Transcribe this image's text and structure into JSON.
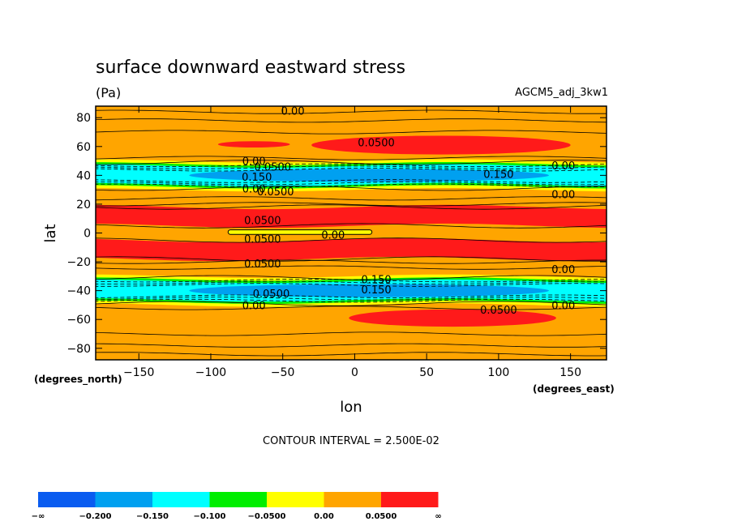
{
  "chart_data": {
    "type": "heatmap",
    "title": "surface downward eastward stress",
    "units": "(Pa)",
    "dataset": "AGCM5_adj_3kw1",
    "xlabel": "lon",
    "ylabel": "lat",
    "xunits": "(degrees_east)",
    "yunits": "(degrees_north)",
    "xlim": [
      -180,
      175
    ],
    "ylim": [
      -88,
      88
    ],
    "xticks": [
      -150,
      -100,
      -50,
      0,
      50,
      100,
      150
    ],
    "yticks": [
      80,
      60,
      40,
      20,
      0,
      -20,
      -40,
      -60,
      -80
    ],
    "xtick_labels": [
      "−150",
      "−100",
      "−50",
      "0",
      "50",
      "100",
      "150"
    ],
    "ytick_labels": [
      "80",
      "60",
      "40",
      "20",
      "0",
      "−20",
      "−40",
      "−60",
      "−80"
    ],
    "contour_interval_text": "CONTOUR INTERVAL = 2.500E-02",
    "colorbar": {
      "bounds": [
        "−∞",
        "−0.200",
        "−0.150",
        "−0.100",
        "−0.0500",
        "0.00",
        "0.0500",
        "∞"
      ],
      "colors": [
        "#0a5cf0",
        "#00a0f0",
        "#00ffff",
        "#00ee00",
        "#ffff00",
        "#ffa500",
        "#ff1a1a"
      ]
    },
    "levels": [
      -0.2,
      -0.15,
      -0.1,
      -0.05,
      0.0,
      0.05
    ],
    "regions": [
      {
        "level": "0.00 to 0.0500",
        "desc": "background"
      },
      {
        "level": ">0.0500",
        "lat_range": [
          5,
          18
        ],
        "lon_range": [
          -180,
          175
        ]
      },
      {
        "level": ">0.0500",
        "lat_range": [
          -18,
          -5
        ],
        "lon_range": [
          -180,
          175
        ]
      },
      {
        "level": ">0.0500",
        "lat_range": [
          53,
          68
        ],
        "lon_range": [
          -30,
          150
        ]
      },
      {
        "level": ">0.0500",
        "lat_range": [
          59,
          64
        ],
        "lon_range": [
          -95,
          -45
        ]
      },
      {
        "level": ">0.0500",
        "lat_range": [
          -65,
          -53
        ],
        "lon_range": [
          -5,
          140
        ]
      },
      {
        "level": "<-0.150",
        "lat_range": [
          34,
          46
        ],
        "lon_range": [
          -120,
          140
        ]
      },
      {
        "level": "<-0.150",
        "lat_range": [
          -46,
          -34
        ],
        "lon_range": [
          -120,
          140
        ]
      },
      {
        "level": "-0.0500 to 0.00",
        "lat_range": [
          -1,
          2
        ],
        "lon_range": [
          -88,
          12
        ]
      }
    ],
    "contour_labels": [
      {
        "text": "0.00",
        "lon": -43,
        "lat": 85
      },
      {
        "text": "0.0500",
        "lon": 15,
        "lat": 63
      },
      {
        "text": "0.00",
        "lon": -70,
        "lat": 50
      },
      {
        "text": "0.0500",
        "lon": -57,
        "lat": 46
      },
      {
        "text": "0.150",
        "lon": -68,
        "lat": 39
      },
      {
        "text": "0.150",
        "lon": 100,
        "lat": 41
      },
      {
        "text": "0.00",
        "lon": 145,
        "lat": 47
      },
      {
        "text": "0.00",
        "lon": -70,
        "lat": 31
      },
      {
        "text": "0.0500",
        "lon": -55,
        "lat": 29
      },
      {
        "text": "0.00",
        "lon": 145,
        "lat": 27
      },
      {
        "text": "0.0500",
        "lon": -64,
        "lat": 9
      },
      {
        "text": "0.00",
        "lon": -15,
        "lat": -1
      },
      {
        "text": "0.0500",
        "lon": -64,
        "lat": -4
      },
      {
        "text": "0.0500",
        "lon": -64,
        "lat": -21
      },
      {
        "text": "0.00",
        "lon": 145,
        "lat": -25
      },
      {
        "text": "0.150",
        "lon": 15,
        "lat": -32
      },
      {
        "text": "0.150",
        "lon": 15,
        "lat": -39
      },
      {
        "text": "0.0500",
        "lon": -58,
        "lat": -42
      },
      {
        "text": "0.00",
        "lon": -70,
        "lat": -50
      },
      {
        "text": "0.0500",
        "lon": 100,
        "lat": -53
      },
      {
        "text": "0.00",
        "lon": 145,
        "lat": -50
      }
    ]
  }
}
